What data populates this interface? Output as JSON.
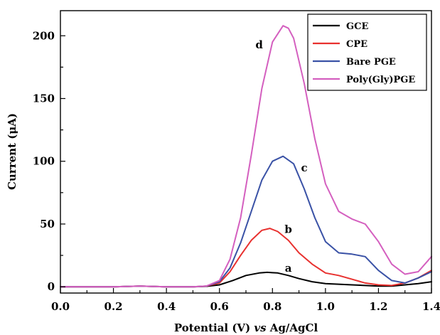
{
  "chart_data": {
    "type": "line",
    "title": "",
    "xlabel_parts": [
      "Potential (V) ",
      "vs",
      " Ag/AgCl"
    ],
    "ylabel_parts": [
      "Current (",
      "μ",
      "A)"
    ],
    "xlim": [
      0.0,
      1.4
    ],
    "ylim": [
      -5,
      220
    ],
    "xticks": [
      0.0,
      0.2,
      0.4,
      0.6,
      0.8,
      1.0,
      1.2,
      1.4
    ],
    "xtick_labels": [
      "0.0",
      "0.2",
      "0.4",
      "0.6",
      "0.8",
      "1.0",
      "1.2",
      "1.4"
    ],
    "yticks": [
      0,
      50,
      100,
      150,
      200
    ],
    "ytick_labels": [
      "0",
      "50",
      "100",
      "150",
      "200"
    ],
    "grid": false,
    "legend_position": "top-right",
    "series": [
      {
        "name": "GCE",
        "color": "#000000",
        "label": "a",
        "label_at": [
          0.86,
          12
        ],
        "x": [
          0.0,
          0.1,
          0.2,
          0.3,
          0.4,
          0.5,
          0.55,
          0.6,
          0.65,
          0.7,
          0.75,
          0.78,
          0.82,
          0.86,
          0.9,
          0.95,
          1.0,
          1.05,
          1.1,
          1.15,
          1.2,
          1.25,
          1.3,
          1.35,
          1.4
        ],
        "y": [
          0,
          0,
          0,
          0.5,
          0,
          0,
          0.3,
          1.5,
          5,
          9,
          11,
          11.5,
          11,
          9,
          6.5,
          4,
          2.5,
          2,
          1.5,
          1,
          0.5,
          0.5,
          1.5,
          2.5,
          4
        ]
      },
      {
        "name": "CPE",
        "color": "#e8312f",
        "label": "b",
        "label_at": [
          0.86,
          43
        ],
        "x": [
          0.0,
          0.1,
          0.2,
          0.3,
          0.4,
          0.5,
          0.55,
          0.6,
          0.64,
          0.68,
          0.72,
          0.76,
          0.79,
          0.82,
          0.86,
          0.9,
          0.95,
          1.0,
          1.05,
          1.1,
          1.15,
          1.2,
          1.25,
          1.3,
          1.35,
          1.4
        ],
        "y": [
          0,
          0,
          0,
          0.5,
          0,
          0,
          0.5,
          3,
          12,
          25,
          37,
          45,
          46.5,
          44,
          37,
          27,
          18,
          11,
          9,
          6,
          3,
          1.5,
          1,
          3,
          7,
          13
        ]
      },
      {
        "name": "Bare PGE",
        "color": "#3a52a6",
        "label": "c",
        "label_at": [
          0.92,
          92
        ],
        "x": [
          0.0,
          0.1,
          0.2,
          0.3,
          0.4,
          0.5,
          0.55,
          0.6,
          0.64,
          0.68,
          0.72,
          0.76,
          0.8,
          0.84,
          0.88,
          0.92,
          0.96,
          1.0,
          1.05,
          1.1,
          1.15,
          1.2,
          1.25,
          1.3,
          1.35,
          1.4
        ],
        "y": [
          0,
          0,
          0,
          0.5,
          0,
          0,
          0.5,
          4,
          15,
          35,
          60,
          85,
          100,
          104,
          98,
          78,
          55,
          36,
          27,
          26,
          24,
          13,
          5,
          3,
          7,
          12
        ]
      },
      {
        "name": "Poly(Gly)PGE",
        "color": "#d45fbf",
        "label": "d",
        "label_at": [
          0.75,
          190
        ],
        "x": [
          0.0,
          0.1,
          0.2,
          0.3,
          0.4,
          0.5,
          0.55,
          0.6,
          0.64,
          0.68,
          0.72,
          0.76,
          0.8,
          0.84,
          0.86,
          0.88,
          0.92,
          0.96,
          1.0,
          1.05,
          1.1,
          1.15,
          1.2,
          1.25,
          1.3,
          1.35,
          1.4
        ],
        "y": [
          0,
          0,
          0,
          0.5,
          0,
          0,
          0.5,
          5,
          22,
          55,
          105,
          158,
          195,
          208,
          206,
          198,
          162,
          118,
          82,
          60,
          54,
          50,
          36,
          18,
          10,
          12,
          24
        ]
      }
    ]
  }
}
